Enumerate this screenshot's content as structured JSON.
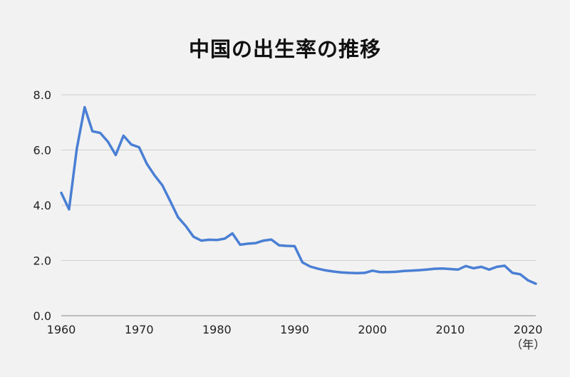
{
  "chart_data": {
    "type": "line",
    "title": "中国の出生率の推移",
    "xlabel": "",
    "ylabel": "",
    "x_unit_label": "（年）",
    "xlim": [
      1960,
      2021
    ],
    "ylim": [
      0,
      8
    ],
    "x_ticks": [
      "1960",
      "1970",
      "1980",
      "1990",
      "2000",
      "2010",
      "2020"
    ],
    "y_ticks": [
      "0.0",
      "2.0",
      "4.0",
      "6.0",
      "8.0"
    ],
    "grid": "horizontal",
    "line_color": "#4a7fd4",
    "series": [
      {
        "x": [
          1960,
          1961,
          1962,
          1963,
          1964,
          1965,
          1966,
          1967,
          1968,
          1969,
          1970,
          1971,
          1972,
          1973,
          1974,
          1975,
          1976,
          1977,
          1978,
          1979,
          1980,
          1981,
          1982,
          1983,
          1984,
          1985,
          1986,
          1987,
          1988,
          1989,
          1990,
          1991,
          1992,
          1993,
          1994,
          1995,
          1996,
          1997,
          1998,
          1999,
          2000,
          2001,
          2002,
          2003,
          2004,
          2005,
          2006,
          2007,
          2008,
          2009,
          2010,
          2011,
          2012,
          2013,
          2014,
          2015,
          2016,
          2017,
          2018,
          2019,
          2020,
          2021
        ],
        "values": [
          4.45,
          3.85,
          6.05,
          7.55,
          6.68,
          6.62,
          6.3,
          5.82,
          6.52,
          6.2,
          6.1,
          5.5,
          5.08,
          4.72,
          4.15,
          3.57,
          3.25,
          2.86,
          2.72,
          2.75,
          2.74,
          2.79,
          2.98,
          2.57,
          2.61,
          2.63,
          2.72,
          2.76,
          2.55,
          2.53,
          2.52,
          1.93,
          1.78,
          1.7,
          1.64,
          1.6,
          1.57,
          1.55,
          1.54,
          1.55,
          1.63,
          1.58,
          1.58,
          1.59,
          1.62,
          1.63,
          1.65,
          1.67,
          1.7,
          1.71,
          1.69,
          1.67,
          1.8,
          1.72,
          1.77,
          1.67,
          1.77,
          1.81,
          1.55,
          1.5,
          1.28,
          1.16
        ]
      }
    ]
  }
}
